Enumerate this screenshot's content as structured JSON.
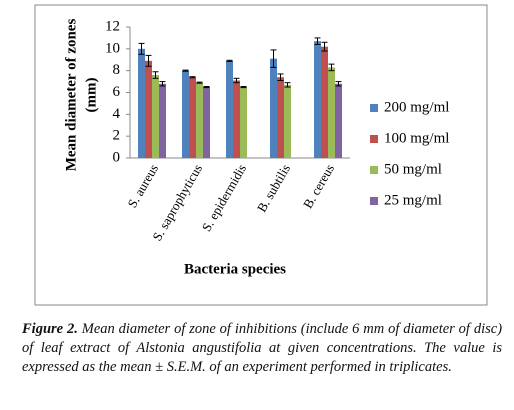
{
  "chart_data": {
    "type": "bar",
    "ylabel": [
      "Mean diameter of zones",
      "(mm)"
    ],
    "xlabel": "Bacteria species",
    "categories": [
      "S. aureus",
      "S. saprophyticus",
      "S. epidermidis",
      "B. subtilis",
      "B. cereus"
    ],
    "series": [
      {
        "name": "200 mg/ml",
        "color": "#4f81bd",
        "values": [
          10.0,
          8.0,
          8.9,
          9.1,
          10.7
        ],
        "errors": [
          0.5,
          0.05,
          0.05,
          0.8,
          0.3
        ]
      },
      {
        "name": "100 mg/ml",
        "color": "#c0504d",
        "values": [
          8.9,
          7.4,
          7.1,
          7.4,
          10.2
        ],
        "errors": [
          0.5,
          0.05,
          0.2,
          0.3,
          0.4
        ]
      },
      {
        "name": "50 mg/ml",
        "color": "#9bbb59",
        "values": [
          7.6,
          6.9,
          6.5,
          6.7,
          8.3
        ],
        "errors": [
          0.3,
          0.05,
          0.05,
          0.2,
          0.3
        ]
      },
      {
        "name": "25 mg/ml",
        "color": "#8064a2",
        "values": [
          6.8,
          6.5,
          null,
          null,
          6.8
        ],
        "errors": [
          0.2,
          0.05,
          null,
          null,
          0.2
        ]
      }
    ],
    "ylim": [
      0,
      12
    ],
    "yticks": [
      0,
      2,
      4,
      6,
      8,
      10,
      12
    ],
    "grid": false,
    "legend": "right"
  },
  "figure_caption": {
    "label": "Figure 2.",
    "text": "Mean diameter of zone of inhibitions (include 6 mm of diameter of disc) of leaf extract of Alstonia angustifolia at given concentrations. The value is expressed as the mean ± S.E.M. of an experiment performed in triplicates."
  }
}
